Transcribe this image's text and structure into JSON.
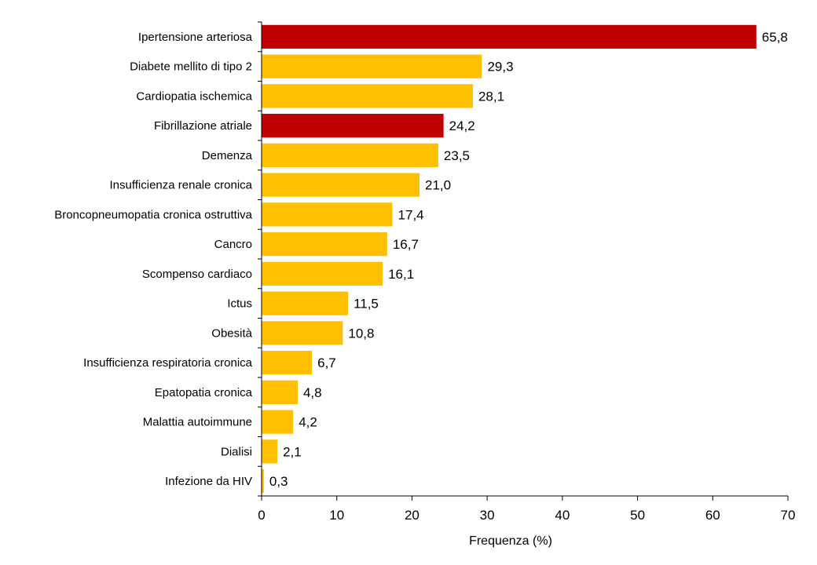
{
  "chart_data": {
    "type": "bar",
    "orientation": "horizontal",
    "categories": [
      "Ipertensione arteriosa",
      "Diabete mellito di tipo 2",
      "Cardiopatia ischemica",
      "Fibrillazione atriale",
      "Demenza",
      "Insufficienza renale cronica",
      "Broncopneumopatia cronica ostruttiva",
      "Cancro",
      "Scompenso cardiaco",
      "Ictus",
      "Obesità",
      "Insufficienza respiratoria cronica",
      "Epatopatia cronica",
      "Malattia autoimmune",
      "Dialisi",
      "Infezione da HIV"
    ],
    "values": [
      65.8,
      29.3,
      28.1,
      24.2,
      23.5,
      21.0,
      17.4,
      16.7,
      16.1,
      11.5,
      10.8,
      6.7,
      4.8,
      4.2,
      2.1,
      0.3
    ],
    "value_labels": [
      "65,8",
      "29,3",
      "28,1",
      "24,2",
      "23,5",
      "21,0",
      "17,4",
      "16,7",
      "16,1",
      "11,5",
      "10,8",
      "6,7",
      "4,8",
      "4,2",
      "2,1",
      "0,3"
    ],
    "highlighted": [
      true,
      false,
      false,
      true,
      false,
      false,
      false,
      false,
      false,
      false,
      false,
      false,
      false,
      false,
      false,
      false
    ],
    "colors": {
      "default": "#FFC000",
      "highlight": "#C00000"
    },
    "xlabel": "Frequenza (%)",
    "ylabel": "",
    "title": "",
    "xlim": [
      0,
      70
    ],
    "xticks": [
      0,
      10,
      20,
      30,
      40,
      50,
      60,
      70
    ],
    "grid": false,
    "legend": "none"
  }
}
